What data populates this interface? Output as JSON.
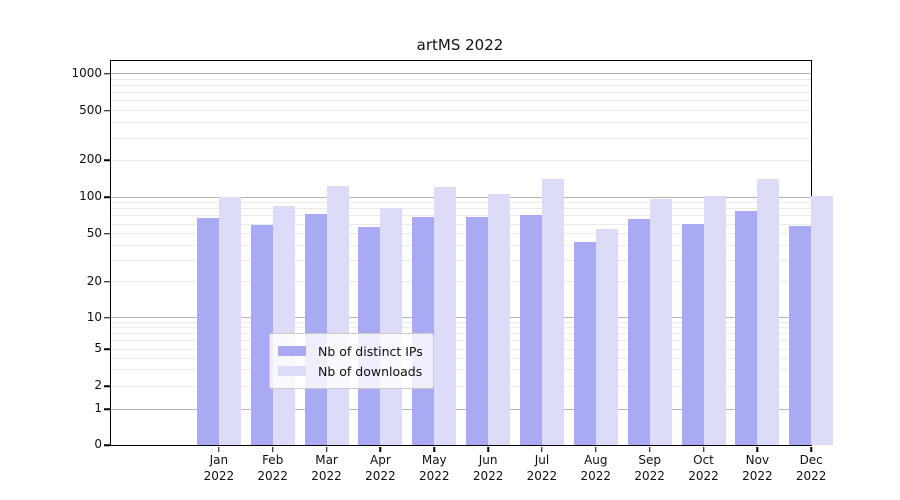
{
  "chart_data": {
    "type": "bar",
    "title": "artMS 2022",
    "categories": [
      "Jan",
      "Feb",
      "Mar",
      "Apr",
      "May",
      "Jun",
      "Jul",
      "Aug",
      "Sep",
      "Oct",
      "Nov",
      "Dec"
    ],
    "year_label": "2022",
    "series": [
      {
        "name": "Nb of distinct IPs",
        "color": "#a9a9f4",
        "values": [
          67,
          59,
          72,
          57,
          68,
          69,
          71,
          43,
          66,
          60,
          77,
          58
        ]
      },
      {
        "name": "Nb of downloads",
        "color": "#dcdcf9",
        "values": [
          100,
          85,
          124,
          82,
          121,
          106,
          140,
          55,
          96,
          102,
          139,
          101
        ]
      }
    ],
    "yscale": "symlog",
    "y_ticks": [
      0,
      1,
      2,
      5,
      10,
      20,
      50,
      100,
      200,
      500,
      1000
    ],
    "ylim": [
      0,
      1400
    ],
    "xlabel": "",
    "ylabel": "",
    "grid": true,
    "legend_position": "lower center"
  },
  "colors": {
    "major_grid": "#b3b3b3",
    "minor_grid": "#ebebeb",
    "axis": "#000000",
    "legend_border": "#cccccc"
  }
}
